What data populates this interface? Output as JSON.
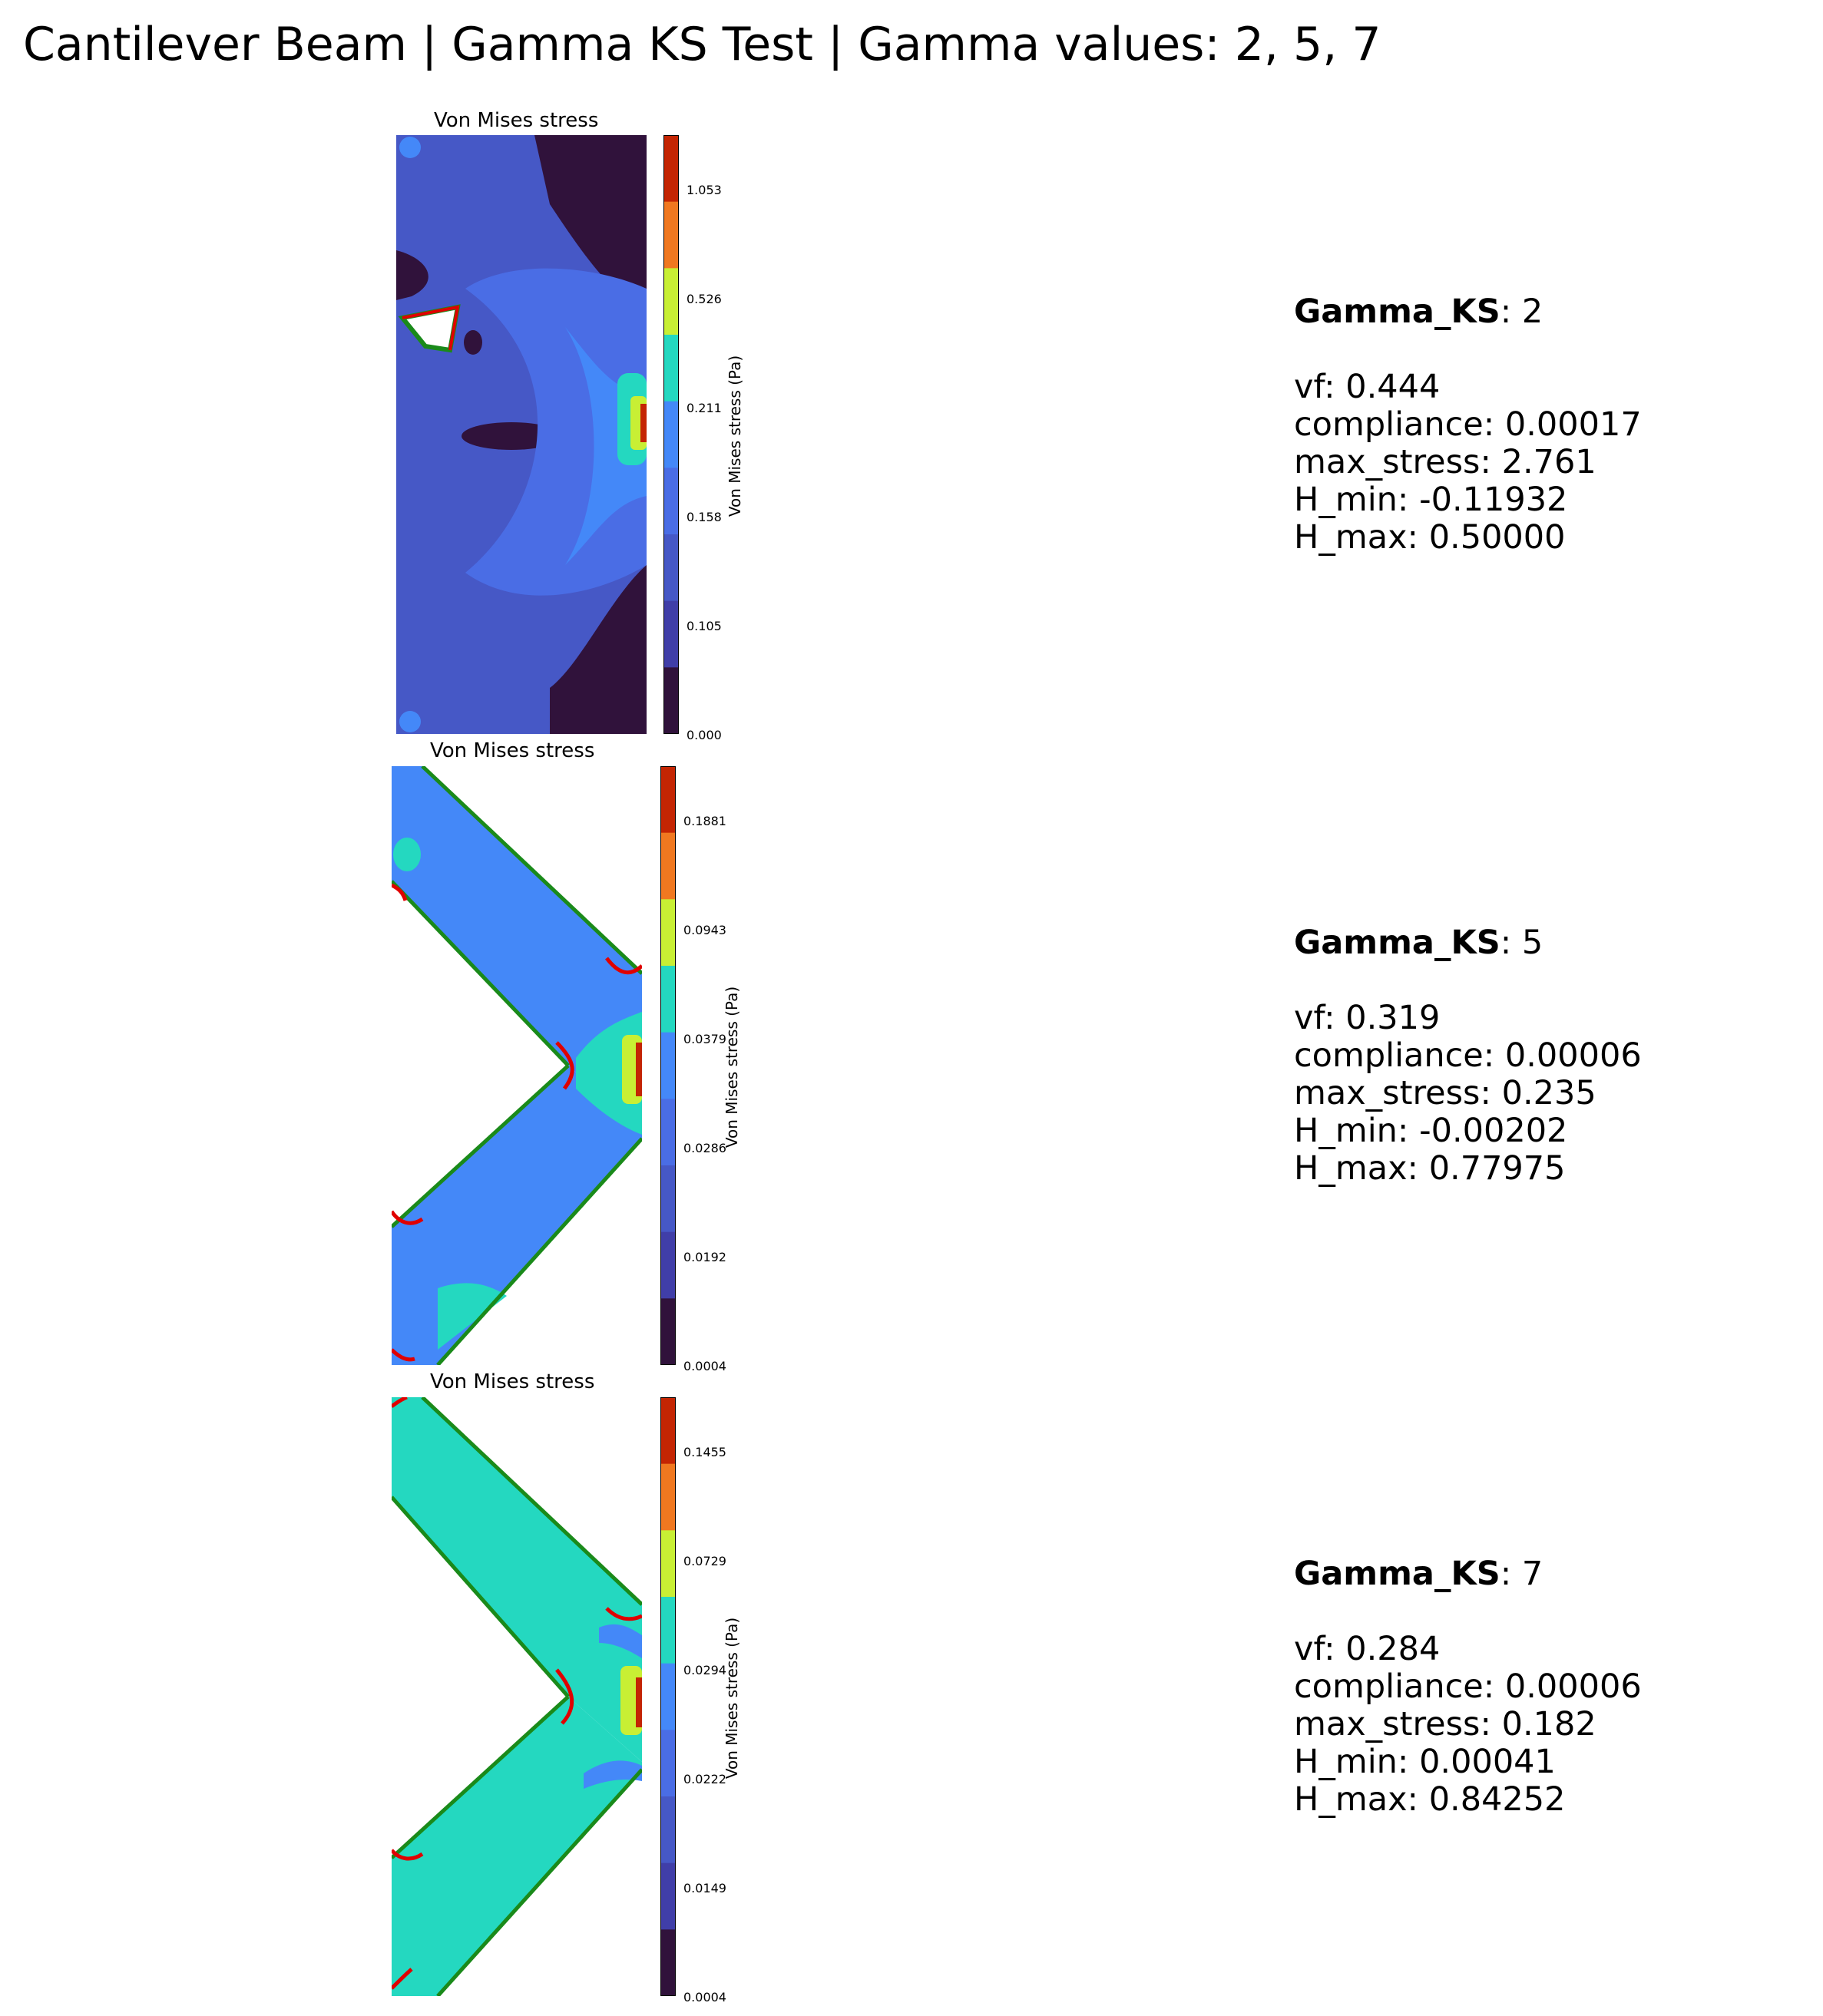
{
  "title": "Cantilever Beam | Gamma KS Test | Gamma values: 2, 5, 7",
  "chart_data": [
    {
      "type": "heatmap",
      "title": "Von Mises stress",
      "colorbar_label": "Von Mises stress (Pa)",
      "colorbar_ticks": [
        "1.053",
        "0.526",
        "0.211",
        "0.158",
        "0.105",
        "0.000"
      ],
      "colorbar_colors": [
        "#c42503",
        "#f07820",
        "#c8ef34",
        "#24d8c0",
        "#4488f8",
        "#4a6de5",
        "#4658c6",
        "#403ea8",
        "#30123b"
      ],
      "gamma_label": "Gamma_KS",
      "gamma_value": "2",
      "metrics": [
        {
          "key": "vf",
          "value": "0.444"
        },
        {
          "key": "compliance",
          "value": "0.00017"
        },
        {
          "key": "max_stress",
          "value": "2.761"
        },
        {
          "key": "H_min",
          "value": "-0.11932"
        },
        {
          "key": "H_max",
          "value": "0.50000"
        }
      ]
    },
    {
      "type": "heatmap",
      "title": "Von Mises stress",
      "colorbar_label": "Von Mises stress (Pa)",
      "colorbar_ticks": [
        "0.1881",
        "0.0943",
        "0.0379",
        "0.0286",
        "0.0192",
        "0.0004"
      ],
      "colorbar_colors": [
        "#c42503",
        "#f07820",
        "#c8ef34",
        "#24d8c0",
        "#4488f8",
        "#4a6de5",
        "#4658c6",
        "#403ea8",
        "#30123b"
      ],
      "gamma_label": "Gamma_KS",
      "gamma_value": "5",
      "metrics": [
        {
          "key": "vf",
          "value": "0.319"
        },
        {
          "key": "compliance",
          "value": "0.00006"
        },
        {
          "key": "max_stress",
          "value": "0.235"
        },
        {
          "key": "H_min",
          "value": "-0.00202"
        },
        {
          "key": "H_max",
          "value": "0.77975"
        }
      ]
    },
    {
      "type": "heatmap",
      "title": "Von Mises stress",
      "colorbar_label": "Von Mises stress (Pa)",
      "colorbar_ticks": [
        "0.1455",
        "0.0729",
        "0.0294",
        "0.0222",
        "0.0149",
        "0.0004"
      ],
      "colorbar_colors": [
        "#c42503",
        "#f07820",
        "#c8ef34",
        "#24d8c0",
        "#4488f8",
        "#4a6de5",
        "#4658c6",
        "#403ea8",
        "#30123b"
      ],
      "gamma_label": "Gamma_KS",
      "gamma_value": "7",
      "metrics": [
        {
          "key": "vf",
          "value": "0.284"
        },
        {
          "key": "compliance",
          "value": "0.00006"
        },
        {
          "key": "max_stress",
          "value": "0.182"
        },
        {
          "key": "H_min",
          "value": "0.00041"
        },
        {
          "key": "H_max",
          "value": "0.84252"
        }
      ]
    }
  ]
}
